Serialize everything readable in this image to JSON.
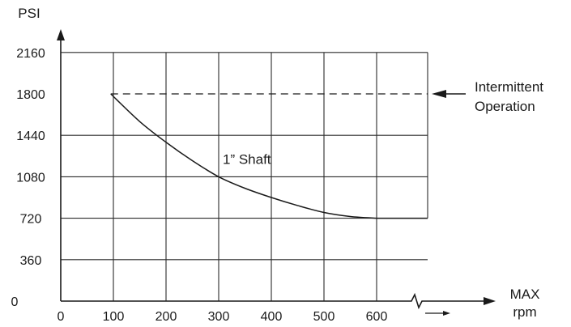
{
  "chart_data": {
    "type": "line",
    "ylabel": "PSI",
    "xlabel_lines": [
      "MAX",
      "rpm"
    ],
    "x_ticks": [
      0,
      100,
      200,
      300,
      400,
      500,
      600
    ],
    "y_ticks": [
      0,
      360,
      720,
      1080,
      1440,
      1800,
      2160
    ],
    "xlim": [
      0,
      600
    ],
    "ylim": [
      0,
      2160
    ],
    "grid": true,
    "series": [
      {
        "name": "1” Shaft",
        "x": [
          95,
          150,
          200,
          250,
          300,
          350,
          400,
          450,
          500,
          550,
          600
        ],
        "y": [
          1800,
          1560,
          1380,
          1220,
          1080,
          980,
          900,
          830,
          770,
          735,
          720
        ]
      }
    ],
    "reference_line": {
      "y": 1800,
      "style": "dashed",
      "label_lines": [
        "Intermittent",
        "Operation"
      ]
    },
    "colors": {
      "line": "#1a1a1a",
      "grid": "#2a2a2a",
      "background": "#ffffff"
    }
  }
}
